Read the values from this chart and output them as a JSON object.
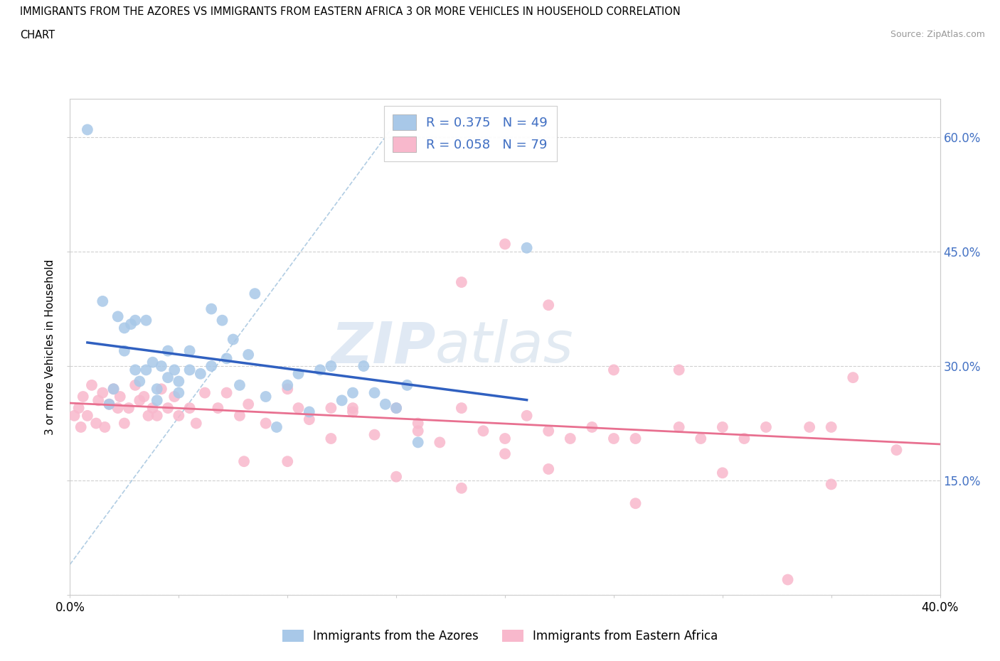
{
  "title_line1": "IMMIGRANTS FROM THE AZORES VS IMMIGRANTS FROM EASTERN AFRICA 3 OR MORE VEHICLES IN HOUSEHOLD CORRELATION",
  "title_line2": "CHART",
  "source": "Source: ZipAtlas.com",
  "ylabel": "3 or more Vehicles in Household",
  "xlim": [
    0.0,
    0.4
  ],
  "ylim": [
    0.0,
    0.65
  ],
  "x_tick_positions": [
    0.0,
    0.05,
    0.1,
    0.15,
    0.2,
    0.25,
    0.3,
    0.35,
    0.4
  ],
  "x_tick_labels": [
    "0.0%",
    "",
    "",
    "",
    "",
    "",
    "",
    "",
    "40.0%"
  ],
  "y_tick_positions": [
    0.0,
    0.15,
    0.3,
    0.45,
    0.6
  ],
  "y_tick_labels_left": [
    "",
    "",
    "",
    "",
    ""
  ],
  "y_tick_labels_right": [
    "",
    "15.0%",
    "30.0%",
    "45.0%",
    "60.0%"
  ],
  "watermark_zip": "ZIP",
  "watermark_atlas": "atlas",
  "legend_label1": "Immigrants from the Azores",
  "legend_label2": "Immigrants from Eastern Africa",
  "R1": 0.375,
  "N1": 49,
  "R2": 0.058,
  "N2": 79,
  "color1": "#a8c8e8",
  "color2": "#f8b8cc",
  "line_color1": "#3060c0",
  "line_color2": "#e87090",
  "right_axis_color": "#4472c4",
  "azores_x": [
    0.008,
    0.015,
    0.018,
    0.02,
    0.022,
    0.025,
    0.025,
    0.028,
    0.03,
    0.03,
    0.032,
    0.035,
    0.035,
    0.038,
    0.04,
    0.04,
    0.042,
    0.045,
    0.045,
    0.048,
    0.05,
    0.05,
    0.055,
    0.055,
    0.06,
    0.065,
    0.065,
    0.07,
    0.072,
    0.075,
    0.078,
    0.082,
    0.085,
    0.09,
    0.095,
    0.1,
    0.105,
    0.11,
    0.115,
    0.12,
    0.125,
    0.13,
    0.135,
    0.14,
    0.145,
    0.15,
    0.155,
    0.16,
    0.21
  ],
  "azores_y": [
    0.61,
    0.385,
    0.25,
    0.27,
    0.365,
    0.35,
    0.32,
    0.355,
    0.36,
    0.295,
    0.28,
    0.36,
    0.295,
    0.305,
    0.27,
    0.255,
    0.3,
    0.32,
    0.285,
    0.295,
    0.28,
    0.265,
    0.295,
    0.32,
    0.29,
    0.375,
    0.3,
    0.36,
    0.31,
    0.335,
    0.275,
    0.315,
    0.395,
    0.26,
    0.22,
    0.275,
    0.29,
    0.24,
    0.295,
    0.3,
    0.255,
    0.265,
    0.3,
    0.265,
    0.25,
    0.245,
    0.275,
    0.2,
    0.455
  ],
  "eastern_africa_x": [
    0.002,
    0.004,
    0.005,
    0.006,
    0.008,
    0.01,
    0.012,
    0.013,
    0.015,
    0.016,
    0.018,
    0.02,
    0.022,
    0.023,
    0.025,
    0.027,
    0.03,
    0.032,
    0.034,
    0.036,
    0.038,
    0.04,
    0.042,
    0.045,
    0.048,
    0.05,
    0.055,
    0.058,
    0.062,
    0.068,
    0.072,
    0.078,
    0.082,
    0.09,
    0.1,
    0.105,
    0.11,
    0.12,
    0.13,
    0.14,
    0.15,
    0.16,
    0.17,
    0.18,
    0.19,
    0.2,
    0.21,
    0.22,
    0.23,
    0.24,
    0.25,
    0.26,
    0.28,
    0.29,
    0.3,
    0.31,
    0.32,
    0.33,
    0.34,
    0.35,
    0.36,
    0.38,
    0.2,
    0.22,
    0.25,
    0.15,
    0.18,
    0.12,
    0.1,
    0.08,
    0.13,
    0.16,
    0.2,
    0.26,
    0.3,
    0.35,
    0.28,
    0.18,
    0.22
  ],
  "eastern_africa_y": [
    0.235,
    0.245,
    0.22,
    0.26,
    0.235,
    0.275,
    0.225,
    0.255,
    0.265,
    0.22,
    0.25,
    0.27,
    0.245,
    0.26,
    0.225,
    0.245,
    0.275,
    0.255,
    0.26,
    0.235,
    0.245,
    0.235,
    0.27,
    0.245,
    0.26,
    0.235,
    0.245,
    0.225,
    0.265,
    0.245,
    0.265,
    0.235,
    0.25,
    0.225,
    0.27,
    0.245,
    0.23,
    0.205,
    0.24,
    0.21,
    0.245,
    0.215,
    0.2,
    0.245,
    0.215,
    0.205,
    0.235,
    0.215,
    0.205,
    0.22,
    0.205,
    0.205,
    0.22,
    0.205,
    0.22,
    0.205,
    0.22,
    0.02,
    0.22,
    0.145,
    0.285,
    0.19,
    0.46,
    0.38,
    0.295,
    0.155,
    0.41,
    0.245,
    0.175,
    0.175,
    0.245,
    0.225,
    0.185,
    0.12,
    0.16,
    0.22,
    0.295,
    0.14,
    0.165
  ]
}
